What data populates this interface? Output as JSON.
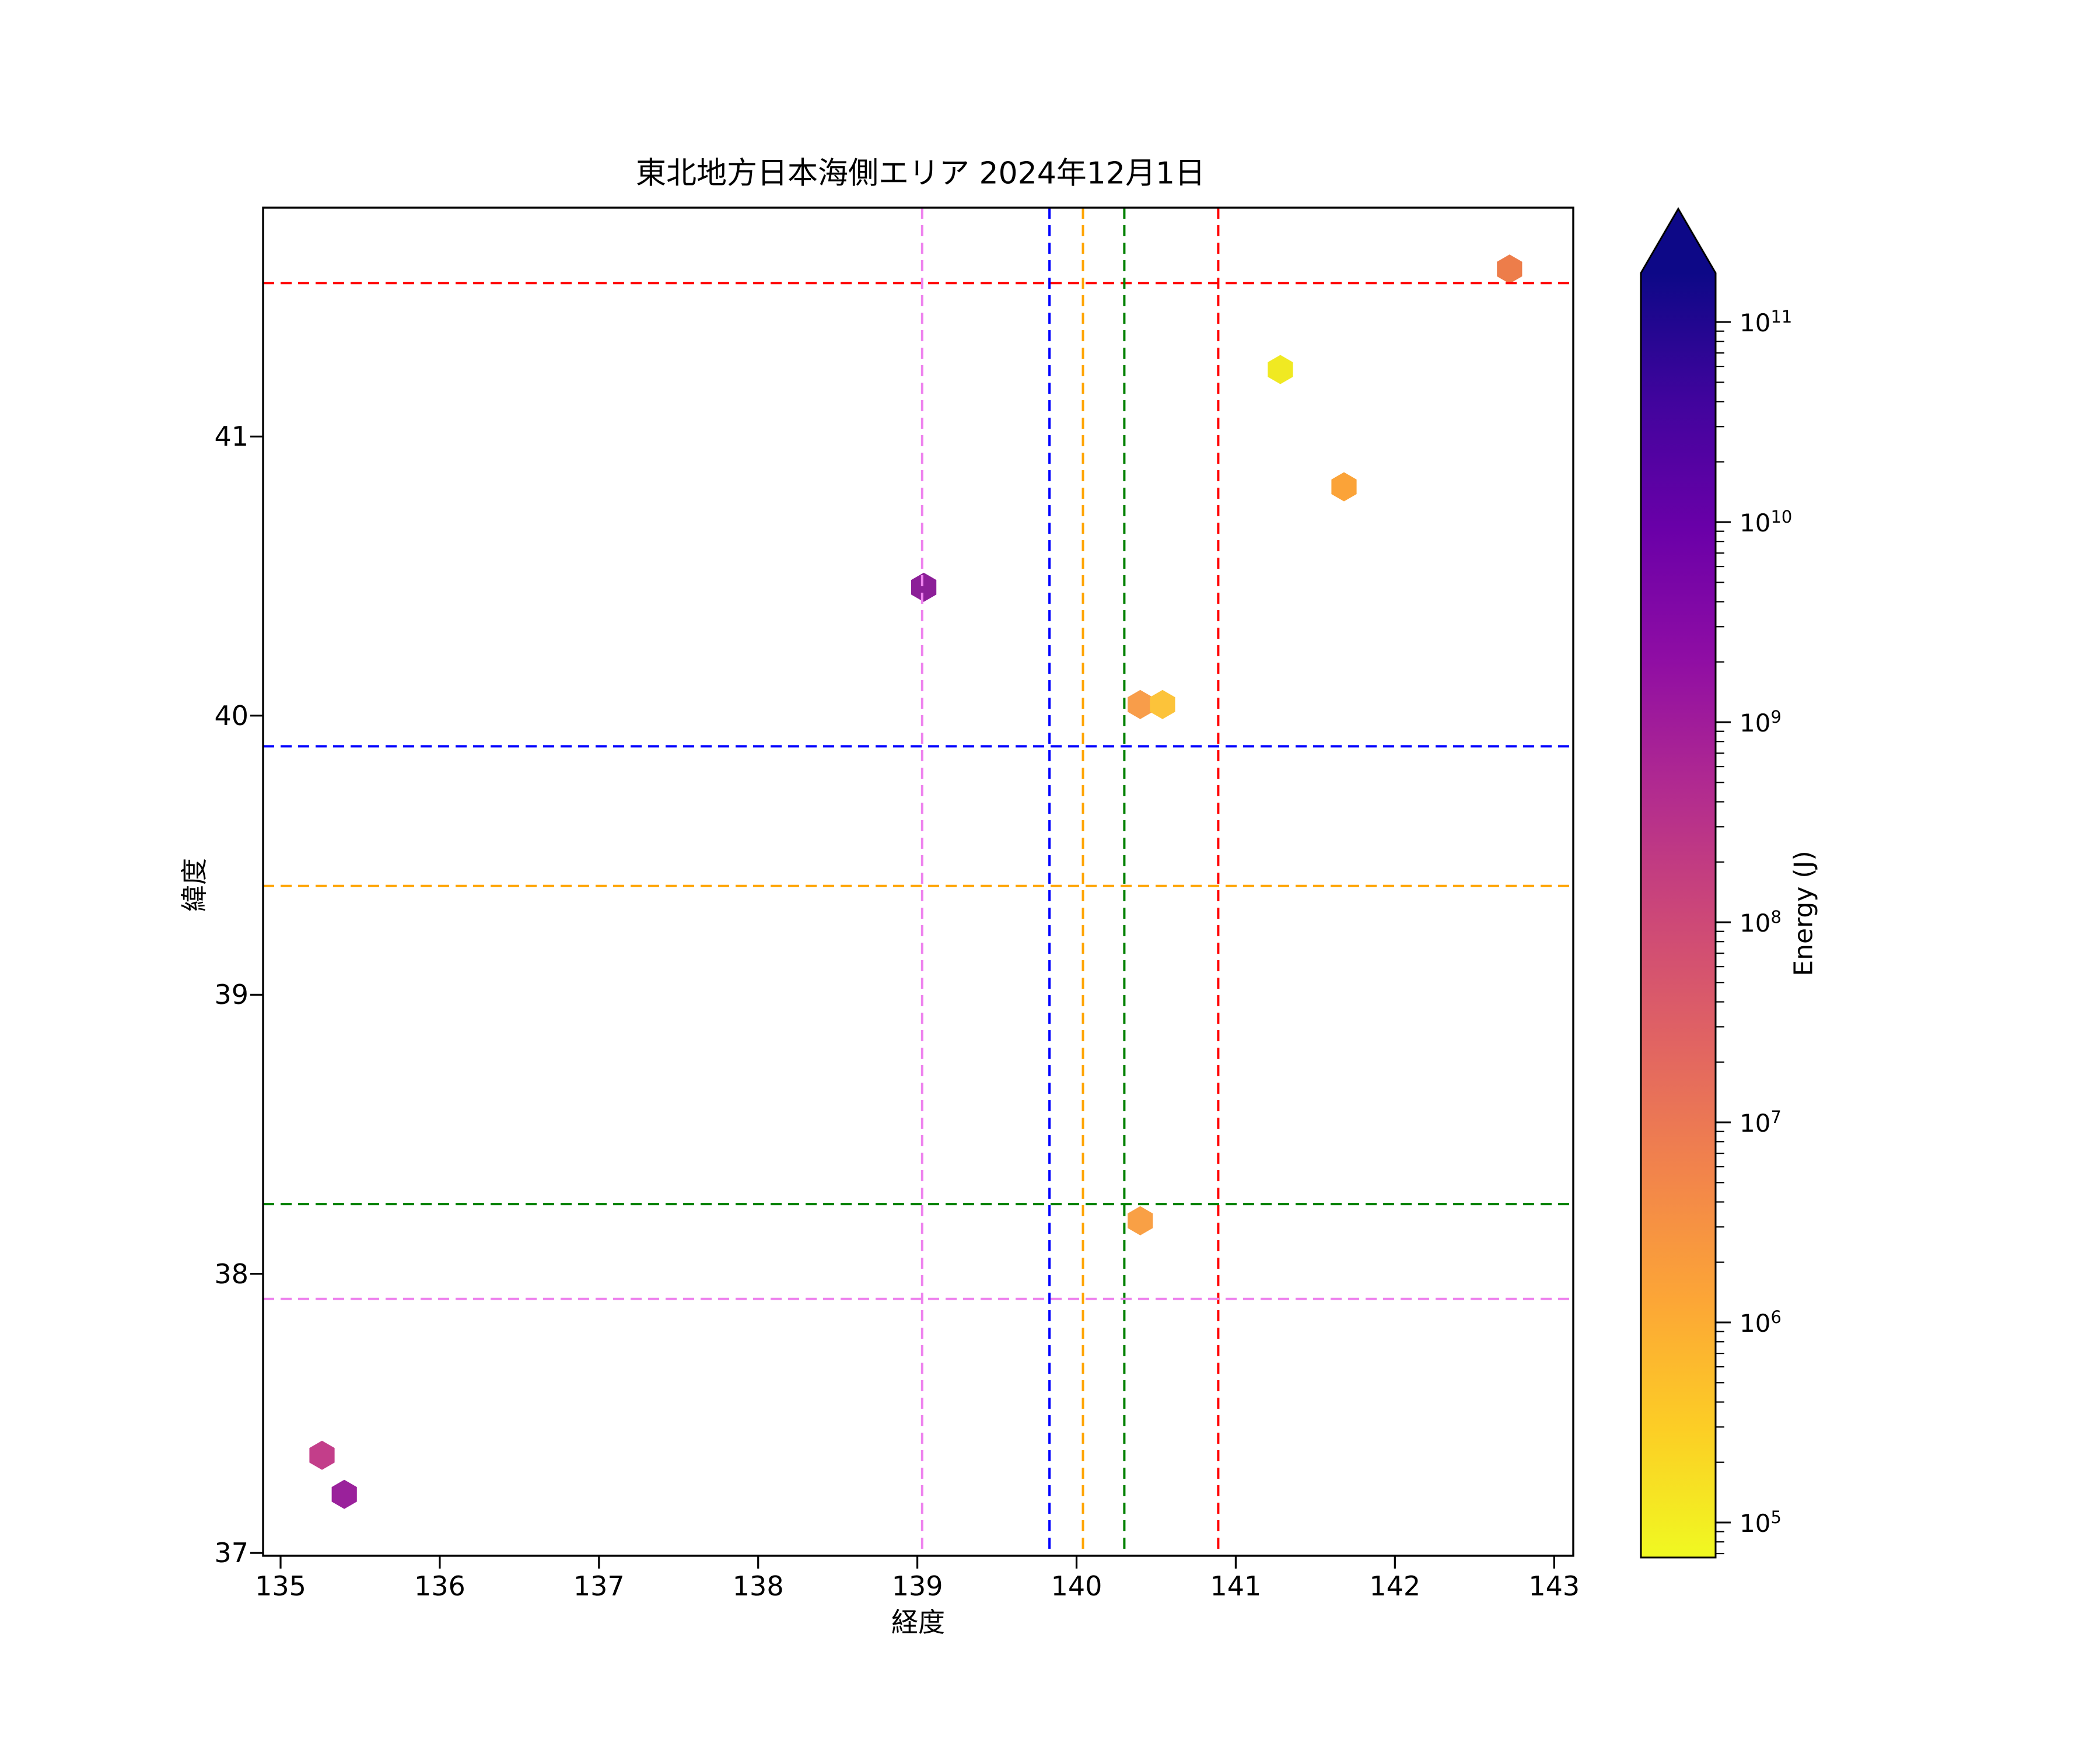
{
  "chart_data": {
    "type": "scatter",
    "title": "東北地方日本海側エリア 2024年12月1日",
    "xlabel": "経度",
    "ylabel": "緯度",
    "xlim": [
      134.89,
      143.12
    ],
    "ylim": [
      36.99,
      41.82
    ],
    "xticks": [
      135,
      136,
      137,
      138,
      139,
      140,
      141,
      142,
      143
    ],
    "yticks": [
      37,
      38,
      39,
      40,
      41
    ],
    "grid": false,
    "marker": "hexagon",
    "points": [
      {
        "lon": 142.72,
        "lat": 41.6,
        "color": "#ed7d4a",
        "energy_j_est": 4000000
      },
      {
        "lon": 141.28,
        "lat": 41.24,
        "color": "#f0e922",
        "energy_j_est": 90000
      },
      {
        "lon": 141.68,
        "lat": 40.82,
        "color": "#fba338",
        "energy_j_est": 1500000
      },
      {
        "lon": 139.04,
        "lat": 40.46,
        "color": "#8c1f98",
        "energy_j_est": 2000000000
      },
      {
        "lon": 140.4,
        "lat": 40.04,
        "color": "#f89d4a",
        "energy_j_est": 2000000
      },
      {
        "lon": 140.54,
        "lat": 40.04,
        "color": "#fcc33a",
        "energy_j_est": 500000
      },
      {
        "lon": 140.4,
        "lat": 38.19,
        "color": "#f9a045",
        "energy_j_est": 1600000
      },
      {
        "lon": 135.26,
        "lat": 37.35,
        "color": "#c33e8a",
        "energy_j_est": 200000000
      },
      {
        "lon": 135.4,
        "lat": 37.21,
        "color": "#9a219b",
        "energy_j_est": 1500000000
      }
    ],
    "reference_lines": [
      {
        "name": "red-crosshair",
        "color": "#ff0000",
        "x": 140.89,
        "y": 41.55
      },
      {
        "name": "blue-crosshair",
        "color": "#0000ff",
        "x": 139.83,
        "y": 39.89
      },
      {
        "name": "orange-crosshair",
        "color": "#ffa500",
        "x": 140.04,
        "y": 39.39
      },
      {
        "name": "green-crosshair",
        "color": "#008000",
        "x": 140.3,
        "y": 38.25
      },
      {
        "name": "violet-crosshair",
        "color": "#ee82ee",
        "x": 139.03,
        "y": 37.91
      }
    ],
    "colorbar": {
      "label": "Energy (J)",
      "scale": "log",
      "colormap": "plasma_r",
      "extend": "max",
      "tick_exponents": [
        11,
        10,
        9,
        8,
        7,
        6,
        5
      ],
      "range_log10": [
        4.825,
        11.245
      ],
      "arrow_color": "#0d0887",
      "gradient_top_to_bottom": [
        "#0d0887",
        "#41049d",
        "#6a00a8",
        "#8f0da4",
        "#b12a90",
        "#cc4778",
        "#e16462",
        "#f2844b",
        "#fca636",
        "#fcce25",
        "#f0f921"
      ]
    }
  }
}
